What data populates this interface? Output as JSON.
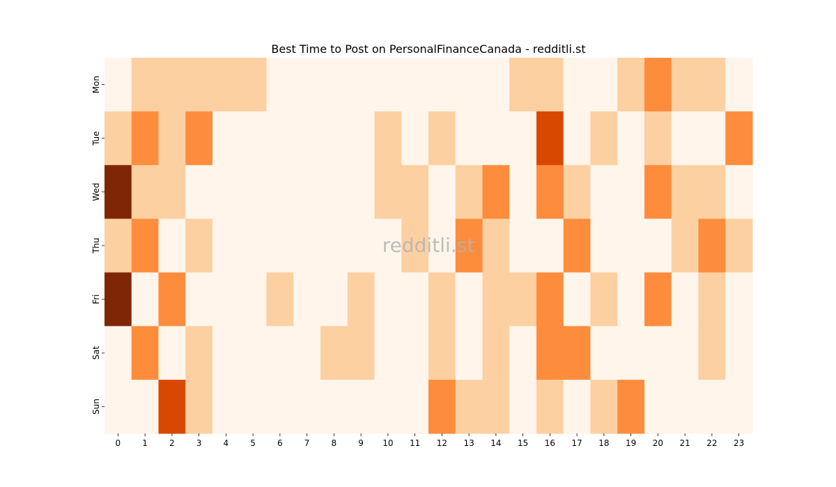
{
  "chart_data": {
    "type": "heatmap",
    "title": "Best Time to Post on PersonalFinanceCanada - redditli.st",
    "xlabel": "",
    "ylabel": "",
    "x": [
      "0",
      "1",
      "2",
      "3",
      "4",
      "5",
      "6",
      "7",
      "8",
      "9",
      "10",
      "11",
      "12",
      "13",
      "14",
      "15",
      "16",
      "17",
      "18",
      "19",
      "20",
      "21",
      "22",
      "23"
    ],
    "y": [
      "Mon",
      "Tue",
      "Wed",
      "Thu",
      "Fri",
      "Sat",
      "Sun"
    ],
    "values": [
      [
        0,
        1,
        1,
        1,
        1,
        1,
        0,
        0,
        0,
        0,
        0,
        0,
        0,
        0,
        0,
        1,
        1,
        0,
        0,
        1,
        2,
        1,
        1,
        0
      ],
      [
        1,
        2,
        1,
        2,
        0,
        0,
        0,
        0,
        0,
        0,
        1,
        0,
        1,
        0,
        0,
        0,
        3,
        0,
        1,
        0,
        1,
        0,
        0,
        2
      ],
      [
        4,
        1,
        1,
        0,
        0,
        0,
        0,
        0,
        0,
        0,
        1,
        1,
        0,
        1,
        2,
        0,
        2,
        1,
        0,
        0,
        2,
        1,
        1,
        0
      ],
      [
        1,
        2,
        0,
        1,
        0,
        0,
        0,
        0,
        0,
        0,
        0,
        1,
        0,
        2,
        1,
        0,
        0,
        2,
        0,
        0,
        0,
        1,
        2,
        1
      ],
      [
        4,
        0,
        2,
        0,
        0,
        0,
        1,
        0,
        0,
        1,
        0,
        0,
        1,
        0,
        1,
        1,
        2,
        0,
        1,
        0,
        2,
        0,
        1,
        0
      ],
      [
        0,
        2,
        0,
        1,
        0,
        0,
        0,
        0,
        1,
        1,
        0,
        0,
        1,
        0,
        1,
        0,
        2,
        2,
        0,
        0,
        0,
        0,
        1,
        0
      ],
      [
        0,
        0,
        3,
        1,
        0,
        0,
        0,
        0,
        0,
        0,
        0,
        0,
        2,
        1,
        1,
        0,
        1,
        0,
        1,
        2,
        0,
        0,
        0,
        0
      ]
    ],
    "colorscale": [
      "#fff5eb",
      "#fdd0a2",
      "#fd8d3c",
      "#d94801",
      "#7f2704"
    ],
    "colorbar": false,
    "grid": false,
    "watermark": "redditli.st"
  }
}
